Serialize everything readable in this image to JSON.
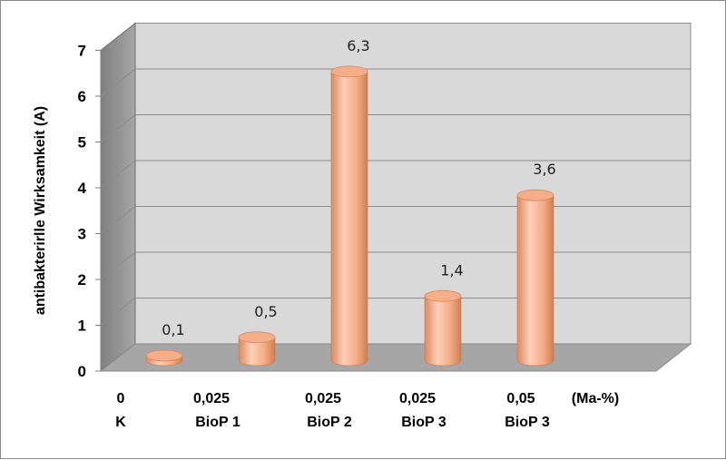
{
  "chart_data": {
    "type": "bar",
    "style": "3d-cylinder",
    "ylabel": "antibakterirlle Wirksamkeit (A)",
    "unit_label": "(Ma-%)",
    "ylim": [
      0,
      7
    ],
    "yticks": [
      "0",
      "1",
      "2",
      "3",
      "4",
      "5",
      "6",
      "7"
    ],
    "grid": true,
    "categories": [
      {
        "line1": "0",
        "line2": "K"
      },
      {
        "line1": "0,025",
        "line2": "BioP 1"
      },
      {
        "line1": "0,025",
        "line2": "BioP 2"
      },
      {
        "line1": "0,025",
        "line2": "BioP 3"
      },
      {
        "line1": "0,05",
        "line2": "BioP 3"
      }
    ],
    "values": [
      0.1,
      0.5,
      6.3,
      1.4,
      3.6
    ],
    "data_labels": [
      "0,1",
      "0,5",
      "6,3",
      "1,4",
      "3,6"
    ],
    "colors": {
      "bar_light": "#fcd3bd",
      "bar_mid": "#f5a87e",
      "bar_dark": "#d9895c",
      "wall": "#d9d9d9",
      "floor": "#a6a6a6",
      "grid": "#8c8c8c"
    }
  }
}
